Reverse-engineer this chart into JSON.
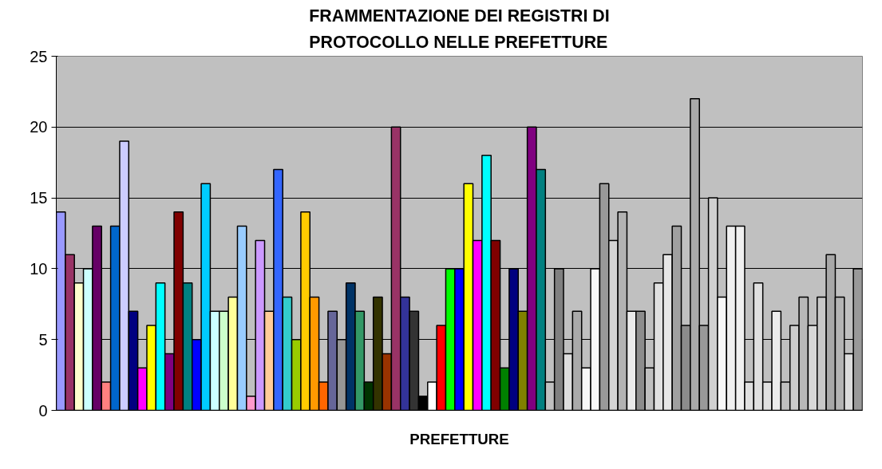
{
  "chart_data": {
    "type": "bar",
    "title": "FRAMMENTAZIONE DEI REGISTRI DI\nPROTOCOLLO NELLE PREFETTURE",
    "xlabel": "PREFETTURE",
    "categories": [
      null,
      null,
      null,
      null,
      null,
      null,
      null,
      null,
      null,
      null,
      null,
      null,
      null,
      null,
      null,
      null,
      null,
      null,
      null,
      null,
      null,
      null,
      null,
      null,
      null,
      null,
      null,
      null,
      null,
      null,
      null,
      null,
      null,
      null,
      null,
      null,
      null,
      null,
      null,
      null,
      null,
      null,
      null,
      null,
      null,
      null,
      null,
      null,
      null,
      null,
      null,
      null,
      null,
      null,
      null,
      null,
      null,
      null,
      null,
      null,
      null,
      null,
      null,
      null,
      null,
      null,
      null,
      null,
      null,
      null,
      null,
      null,
      null,
      null,
      null,
      null,
      null,
      null,
      null,
      null,
      null,
      null,
      null,
      null,
      null,
      null,
      null,
      null,
      null
    ],
    "values": [
      14,
      11,
      9,
      10,
      13,
      2,
      13,
      19,
      7,
      3,
      6,
      9,
      4,
      14,
      9,
      5,
      16,
      7,
      7,
      8,
      13,
      1,
      12,
      7,
      17,
      8,
      5,
      14,
      8,
      2,
      7,
      5,
      9,
      7,
      2,
      8,
      4,
      20,
      8,
      7,
      1,
      2,
      6,
      10,
      10,
      16,
      12,
      18,
      12,
      3,
      10,
      7,
      20,
      17,
      2,
      10,
      4,
      7,
      3,
      10,
      16,
      12,
      14,
      7,
      7,
      3,
      9,
      11,
      13,
      6,
      22,
      6,
      15,
      8,
      13,
      13,
      2,
      9,
      2,
      7,
      2,
      6,
      8,
      6,
      8,
      11,
      8,
      4,
      10
    ],
    "colors": [
      "#9999ff",
      "#993366",
      "#ffffcc",
      "#ccffff",
      "#660066",
      "#ff8080",
      "#0066cc",
      "#ccccff",
      "#000080",
      "#ff00ff",
      "#ffff00",
      "#00ffff",
      "#800080",
      "#800000",
      "#008080",
      "#0000ff",
      "#00ccff",
      "#ccffff",
      "#ccffcc",
      "#ffff99",
      "#99ccff",
      "#ff99cc",
      "#cc99ff",
      "#ffcc99",
      "#3366ff",
      "#33cccc",
      "#99cc00",
      "#ffcc00",
      "#ff9900",
      "#ff6600",
      "#666699",
      "#969696",
      "#003366",
      "#339966",
      "#003300",
      "#333300",
      "#993300",
      "#993366",
      "#333399",
      "#333333",
      "#000000",
      "#ffffff",
      "#ff0000",
      "#00ff00",
      "#0000ff",
      "#ffff00",
      "#ff00ff",
      "#00ffff",
      "#800000",
      "#008000",
      "#000080",
      "#808000",
      "#800080",
      "#008080",
      "#c0c0c0",
      "#808080",
      "#dddddd",
      "#aaaaaa",
      "#f8f8f8",
      "#f8f8f8",
      "#999999",
      "#d4d4d4",
      "#b2b2b2",
      "#eaeaea",
      "#8c8c8c",
      "#c0c0c0",
      "#e0e0e0",
      "#e6e6e6",
      "#a0a0a0",
      "#8c8c8c",
      "#aaaaaa",
      "#999999",
      "#d0d0d0",
      "#f8f8f8",
      "#f0f0f0",
      "#f0f0f0",
      "#e0e0e0",
      "#e0e0e0",
      "#e0e0e0",
      "#ececec",
      "#c0c0c0",
      "#cccccc",
      "#b8b8b8",
      "#d8d8d8",
      "#c8c8c8",
      "#a8a8a8",
      "#b4b4b4",
      "#dcdcdc",
      "#999999"
    ],
    "ylim": [
      0,
      25
    ],
    "yticks": [
      0,
      5,
      10,
      15,
      20,
      25
    ],
    "grid": "y"
  }
}
